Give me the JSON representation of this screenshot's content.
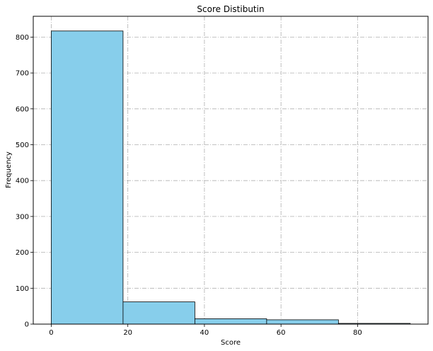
{
  "chart_data": {
    "type": "bar",
    "title": "Score Distibutin",
    "xlabel": "Score",
    "ylabel": "Frequency",
    "bins": [
      {
        "start": 0,
        "end": 18.75,
        "value": 817
      },
      {
        "start": 18.75,
        "end": 37.5,
        "value": 62
      },
      {
        "start": 37.5,
        "end": 56.25,
        "value": 15
      },
      {
        "start": 56.25,
        "end": 75,
        "value": 12
      },
      {
        "start": 75,
        "end": 93.75,
        "value": 2
      }
    ],
    "xlim": [
      -4.7,
      98.4
    ],
    "ylim": [
      0,
      858
    ],
    "xticks": [
      0,
      20,
      40,
      60,
      80
    ],
    "yticks": [
      0,
      100,
      200,
      300,
      400,
      500,
      600,
      700,
      800
    ],
    "grid": true,
    "colors": {
      "bar_fill": "#87ceeb",
      "bar_edge": "#000000",
      "grid": "#b0b0b0"
    }
  }
}
